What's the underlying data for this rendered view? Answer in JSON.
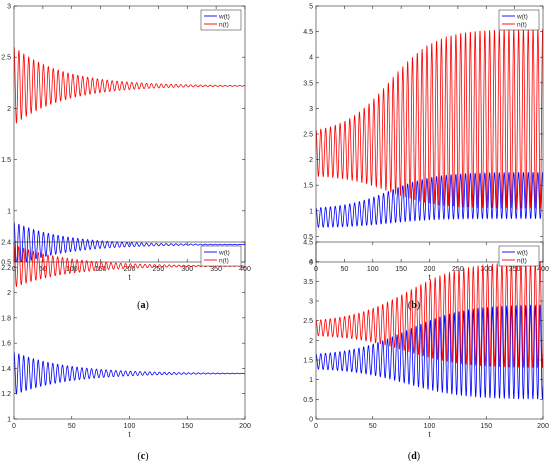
{
  "captions": {
    "a": "a",
    "b": "b",
    "c": "c",
    "d": "d"
  },
  "colors": {
    "w": "#0000ff",
    "n": "#ff0000"
  },
  "chart_data": [
    {
      "id": "a",
      "type": "line",
      "xlabel": "t",
      "ylabel": "",
      "xlim": [
        0,
        400
      ],
      "ylim": [
        0.5,
        3
      ],
      "xticks": [
        0,
        50,
        100,
        150,
        200,
        250,
        300,
        350,
        400
      ],
      "yticks": [
        0.5,
        1,
        1.5,
        2,
        2.5,
        3
      ],
      "ytick_labels": [
        "0.5",
        "1",
        "1.5",
        "2",
        "2.5",
        "3"
      ],
      "legend_position": "top-right",
      "series": [
        {
          "name": "w(t)",
          "color": "#0000ff",
          "mode": "damped",
          "center": 0.67,
          "amp_start": 0.22,
          "amp_end": 0.0,
          "tau": 85,
          "period": 8.5
        },
        {
          "name": "n(t)",
          "color": "#ff0000",
          "mode": "damped",
          "center": 2.22,
          "amp_start": 0.38,
          "amp_end": 0.0,
          "tau": 85,
          "period": 8.5
        }
      ]
    },
    {
      "id": "b",
      "type": "line",
      "xlabel": "t",
      "ylabel": "",
      "xlim": [
        0,
        400
      ],
      "ylim": [
        0,
        5
      ],
      "xticks": [
        0,
        50,
        100,
        150,
        200,
        250,
        300,
        350,
        400
      ],
      "yticks": [
        0,
        0.5,
        1,
        1.5,
        2,
        2.5,
        3,
        3.5,
        4,
        4.5,
        5
      ],
      "ytick_labels": [
        "0",
        "0.5",
        "1",
        "1.5",
        "2",
        "2.5",
        "3",
        "3.5",
        "4",
        "4.5",
        "5"
      ],
      "legend_position": "top-right",
      "series": [
        {
          "name": "w(t)",
          "color": "#0000ff",
          "mode": "growing",
          "c0": 0.85,
          "c1": 1.3,
          "a0": 0.18,
          "a1": 0.45,
          "t_mid": 130,
          "width": 40,
          "period": 8.5
        },
        {
          "name": "n(t)",
          "color": "#ff0000",
          "mode": "growing",
          "c0": 2.1,
          "c1": 2.8,
          "a0": 0.4,
          "a1": 1.75,
          "t_mid": 130,
          "width": 40,
          "period": 8.5
        }
      ]
    },
    {
      "id": "c",
      "type": "line",
      "xlabel": "t",
      "ylabel": "",
      "xlim": [
        0,
        200
      ],
      "ylim": [
        1,
        2.4
      ],
      "xticks": [
        0,
        50,
        100,
        150,
        200
      ],
      "yticks": [
        1,
        1.2,
        1.4,
        1.6,
        1.8,
        2,
        2.2,
        2.4
      ],
      "ytick_labels": [
        "1",
        "1.2",
        "1.4",
        "1.6",
        "1.8",
        "2",
        "2.2",
        "2.4"
      ],
      "legend_position": "top-right",
      "series": [
        {
          "name": "w(t)",
          "color": "#0000ff",
          "mode": "damped",
          "center": 1.36,
          "amp_start": 0.17,
          "amp_end": 0.0,
          "tau": 45,
          "period": 4.2
        },
        {
          "name": "n(t)",
          "color": "#ff0000",
          "mode": "damped",
          "center": 2.21,
          "amp_start": 0.17,
          "amp_end": 0.0,
          "tau": 45,
          "period": 4.2
        }
      ]
    },
    {
      "id": "d",
      "type": "line",
      "xlabel": "t",
      "ylabel": "",
      "xlim": [
        0,
        200
      ],
      "ylim": [
        0,
        4.5
      ],
      "xticks": [
        0,
        50,
        100,
        150,
        200
      ],
      "yticks": [
        0,
        0.5,
        1,
        1.5,
        2,
        2.5,
        3,
        3.5,
        4,
        4.5
      ],
      "ytick_labels": [
        "0",
        "0.5",
        "1",
        "1.5",
        "2",
        "2.5",
        "3",
        "3.5",
        "4",
        "4.5"
      ],
      "legend_position": "top-right",
      "series": [
        {
          "name": "w(t)",
          "color": "#0000ff",
          "mode": "growing",
          "c0": 1.45,
          "c1": 1.7,
          "a0": 0.15,
          "a1": 1.2,
          "t_mid": 80,
          "width": 25,
          "period": 4.2
        },
        {
          "name": "n(t)",
          "color": "#ff0000",
          "mode": "growing",
          "c0": 2.3,
          "c1": 2.65,
          "a0": 0.15,
          "a1": 1.35,
          "t_mid": 80,
          "width": 25,
          "period": 4.2
        }
      ]
    }
  ]
}
